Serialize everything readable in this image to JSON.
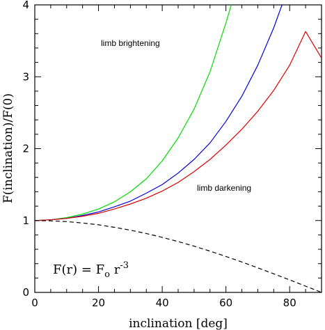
{
  "chart_data": {
    "type": "line",
    "title": "",
    "xlabel": "inclination [deg]",
    "ylabel": "F(inclination)/F(0)",
    "xlim": [
      0,
      90
    ],
    "ylim": [
      0,
      4
    ],
    "xticks": [
      0,
      20,
      40,
      60,
      80
    ],
    "yticks": [
      0,
      1,
      2,
      3,
      4
    ],
    "grid": false,
    "series": [
      {
        "color": "#00dd00",
        "dash": false,
        "x": [
          0,
          5,
          10,
          15,
          20,
          25,
          30,
          35,
          40,
          45,
          50,
          55,
          60,
          62
        ],
        "y": [
          1.0,
          1.01,
          1.04,
          1.09,
          1.16,
          1.26,
          1.4,
          1.58,
          1.83,
          2.15,
          2.55,
          3.07,
          3.75,
          4.05
        ]
      },
      {
        "color": "#0000dd",
        "dash": false,
        "x": [
          0,
          5,
          10,
          15,
          20,
          25,
          30,
          35,
          40,
          45,
          50,
          55,
          60,
          65,
          70,
          75,
          78
        ],
        "y": [
          1.0,
          1.01,
          1.03,
          1.07,
          1.12,
          1.19,
          1.27,
          1.38,
          1.5,
          1.66,
          1.85,
          2.08,
          2.38,
          2.73,
          3.16,
          3.68,
          4.05
        ]
      },
      {
        "color": "#dd0000",
        "dash": false,
        "x": [
          0,
          5,
          10,
          15,
          20,
          25,
          30,
          35,
          40,
          45,
          50,
          55,
          60,
          65,
          70,
          75,
          80,
          85,
          90
        ],
        "y": [
          1.0,
          1.01,
          1.03,
          1.06,
          1.1,
          1.16,
          1.23,
          1.31,
          1.41,
          1.53,
          1.68,
          1.85,
          2.05,
          2.27,
          2.52,
          2.81,
          3.16,
          3.63,
          3.26
        ]
      },
      {
        "color": "#000000",
        "dash": true,
        "x": [
          0,
          5,
          10,
          15,
          20,
          25,
          30,
          35,
          40,
          45,
          50,
          55,
          60,
          65,
          70,
          75,
          80,
          85,
          90
        ],
        "y": [
          1.0,
          0.996,
          0.985,
          0.966,
          0.94,
          0.906,
          0.866,
          0.819,
          0.766,
          0.707,
          0.643,
          0.574,
          0.5,
          0.423,
          0.342,
          0.259,
          0.174,
          0.087,
          0.0
        ]
      }
    ],
    "annotations": {
      "brightening": "limb brightening",
      "darkening": "limb darkening",
      "formula_main": "F(r) = F",
      "formula_sub": "o",
      "formula_r": " r",
      "formula_exp": "-3"
    }
  }
}
